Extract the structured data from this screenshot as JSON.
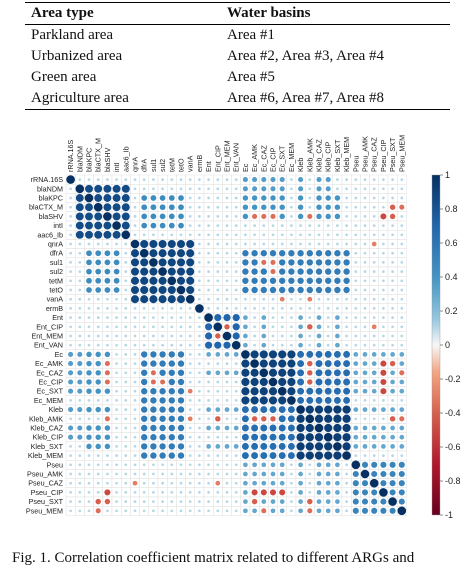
{
  "area_table": {
    "headers": [
      "Area type",
      "Water basins"
    ],
    "rows": [
      [
        "Parkland area",
        "Area #1"
      ],
      [
        "Urbanized area",
        "Area #2, Area #3, Area #4"
      ],
      [
        "Green area",
        "Area #5"
      ],
      [
        "Agriculture area",
        "Area #6, Area #7, Area #8"
      ]
    ]
  },
  "caption": "Fig. 1.  Correlation coefficient matrix related to different ARGs and",
  "colors": {
    "positive": "#053061",
    "neutral": "#f7f7f7",
    "negative": "#67001f"
  },
  "chart_data": {
    "type": "heatmap",
    "subtype": "correlation-matrix-circles",
    "labels": [
      "rRNA.16S",
      "blaNDM",
      "blaKPC",
      "blaCTX_M",
      "blaSHV",
      "intI",
      "aac6_Ib",
      "qnrA",
      "dfrA",
      "sul1",
      "sul2",
      "tetM",
      "tetO",
      "vanA",
      "ermB",
      "Ent",
      "Ent_CIP",
      "Ent_MEM",
      "Ent_VAN",
      "Ec",
      "Ec_AMK",
      "Ec_CAZ",
      "Ec_CIP",
      "Ec_SXT",
      "Ec_MEM",
      "Kleb",
      "Kleb_AMK",
      "Kleb_CAZ",
      "Kleb_CIP",
      "Kleb_SXT",
      "Kleb_MEM",
      "Pseu",
      "Pseu_AMK",
      "Pseu_CAZ",
      "Pseu_CIP",
      "Pseu_SXT",
      "Pseu_MEM"
    ],
    "colorbar_ticks": [
      "1",
      "0.8",
      "0.6",
      "0.4",
      "0.2",
      "0",
      "-0.2",
      "-0.4",
      "-0.6",
      "-0.8",
      "-1"
    ],
    "value_range": [
      -1,
      1
    ],
    "diagonal": 1,
    "groups": [
      {
        "labels": [
          "blaNDM",
          "blaKPC",
          "blaCTX_M",
          "blaSHV",
          "intI",
          "aac6_Ib"
        ],
        "r": 0.85
      },
      {
        "labels": [
          "qnrA",
          "dfrA",
          "sul1",
          "sul2",
          "tetM",
          "tetO",
          "vanA"
        ],
        "r": 0.88
      },
      {
        "labels": [
          "Ent",
          "Ent_CIP",
          "Ent_MEM",
          "Ent_VAN"
        ],
        "r": 0.7
      },
      {
        "labels": [
          "Ec",
          "Ec_AMK",
          "Ec_CAZ",
          "Ec_CIP",
          "Ec_SXT",
          "Ec_MEM"
        ],
        "r": 0.9
      },
      {
        "labels": [
          "Kleb",
          "Kleb_AMK",
          "Kleb_CAZ",
          "Kleb_CIP",
          "Kleb_SXT",
          "Kleb_MEM"
        ],
        "r": 0.92
      },
      {
        "labels": [
          "Pseu",
          "Pseu_AMK",
          "Pseu_CAZ",
          "Pseu_CIP",
          "Pseu_SXT",
          "Pseu_MEM"
        ],
        "r": 0.5
      }
    ],
    "cross_blocks": [
      {
        "rows": [
          "Ec",
          "Ec_AMK",
          "Ec_CAZ",
          "Ec_CIP",
          "Ec_SXT",
          "Ec_MEM"
        ],
        "cols": [
          "Kleb",
          "Kleb_AMK",
          "Kleb_CAZ",
          "Kleb_CIP",
          "Kleb_SXT",
          "Kleb_MEM"
        ],
        "r": 0.65
      },
      {
        "rows": [
          "dfrA",
          "sul1",
          "sul2",
          "tetM",
          "tetO"
        ],
        "cols": [
          "Ec",
          "Ec_AMK",
          "Ec_CAZ",
          "Ec_CIP",
          "Ec_SXT",
          "Ec_MEM",
          "Kleb",
          "Kleb_AMK",
          "Kleb_CAZ",
          "Kleb_CIP",
          "Kleb_SXT",
          "Kleb_MEM"
        ],
        "r": 0.55
      },
      {
        "rows": [
          "blaKPC",
          "blaCTX_M",
          "blaSHV",
          "intI"
        ],
        "cols": [
          "dfrA",
          "sul1",
          "sul2",
          "tetM",
          "tetO"
        ],
        "r": 0.45
      },
      {
        "rows": [
          "blaKPC",
          "blaCTX_M",
          "blaSHV"
        ],
        "cols": [
          "Ec",
          "Ec_AMK",
          "Ec_CAZ",
          "Ec_CIP",
          "Ec_SXT",
          "Kleb",
          "Kleb_CAZ",
          "Kleb_CIP",
          "Kleb_SXT"
        ],
        "r": 0.4
      },
      {
        "rows": [
          "rRNA.16S",
          "blaNDM"
        ],
        "cols": [
          "Ec",
          "Ec_AMK",
          "Ec_CAZ",
          "Ec_CIP",
          "Ec_SXT",
          "Kleb",
          "Kleb_CAZ",
          "Kleb_CIP"
        ],
        "r": 0.35
      },
      {
        "rows": [
          "Pseu",
          "Pseu_AMK",
          "Pseu_CAZ",
          "Pseu_CIP",
          "Pseu_SXT",
          "Pseu_MEM"
        ],
        "cols": [
          "Ec",
          "Ec_AMK",
          "Ec_CAZ",
          "Ec_CIP",
          "Ec_SXT",
          "Kleb",
          "Kleb_CAZ",
          "Kleb_CIP",
          "Kleb_SXT"
        ],
        "r": 0.3
      },
      {
        "rows": [
          "Ent",
          "Ent_CIP",
          "Ent_MEM",
          "Ent_VAN"
        ],
        "cols": [
          "Ec",
          "Ec_CAZ",
          "Kleb",
          "Kleb_CAZ",
          "Kleb_SXT"
        ],
        "r": 0.3
      }
    ],
    "negative_cells": [
      {
        "row": "blaSHV",
        "cols": [
          "Ec_AMK",
          "Ec_CAZ",
          "Ec_CIP",
          "Kleb_AMK"
        ],
        "r": -0.35
      },
      {
        "row": "Ent_CIP",
        "cols": [
          "Ent_MEM",
          "Kleb_AMK"
        ],
        "r": -0.4
      },
      {
        "row": "Ec_CAZ",
        "cols": [
          "sul1",
          "Kleb_AMK"
        ],
        "r": -0.35
      },
      {
        "row": "Ec_CIP",
        "cols": [
          "sul1",
          "sul2",
          "Kleb_AMK"
        ],
        "r": -0.35
      },
      {
        "row": "Kleb_AMK",
        "cols": [
          "Ec_AMK",
          "Ec_CAZ",
          "Ec_CIP",
          "Pseu_SXT"
        ],
        "r": -0.4
      },
      {
        "row": "Pseu_CIP",
        "cols": [
          "Ec_AMK",
          "Ec_CAZ",
          "Ec_CIP",
          "Ec_SXT",
          "blaSHV"
        ],
        "r": -0.5
      },
      {
        "row": "Pseu_SXT",
        "cols": [
          "blaCTX_M",
          "blaSHV",
          "Ec_AMK",
          "Kleb_AMK"
        ],
        "r": -0.4
      },
      {
        "row": "Pseu_CAZ",
        "cols": [
          "qnrA",
          "Ent_CIP"
        ],
        "r": -0.3
      },
      {
        "row": "vanA",
        "cols": [
          "Ec_SXT",
          "Kleb_AMK"
        ],
        "r": -0.3
      },
      {
        "row": "Pseu_MEM",
        "cols": [
          "blaCTX_M",
          "Ec_CAZ",
          "Kleb_AMK"
        ],
        "r": -0.35
      }
    ]
  }
}
